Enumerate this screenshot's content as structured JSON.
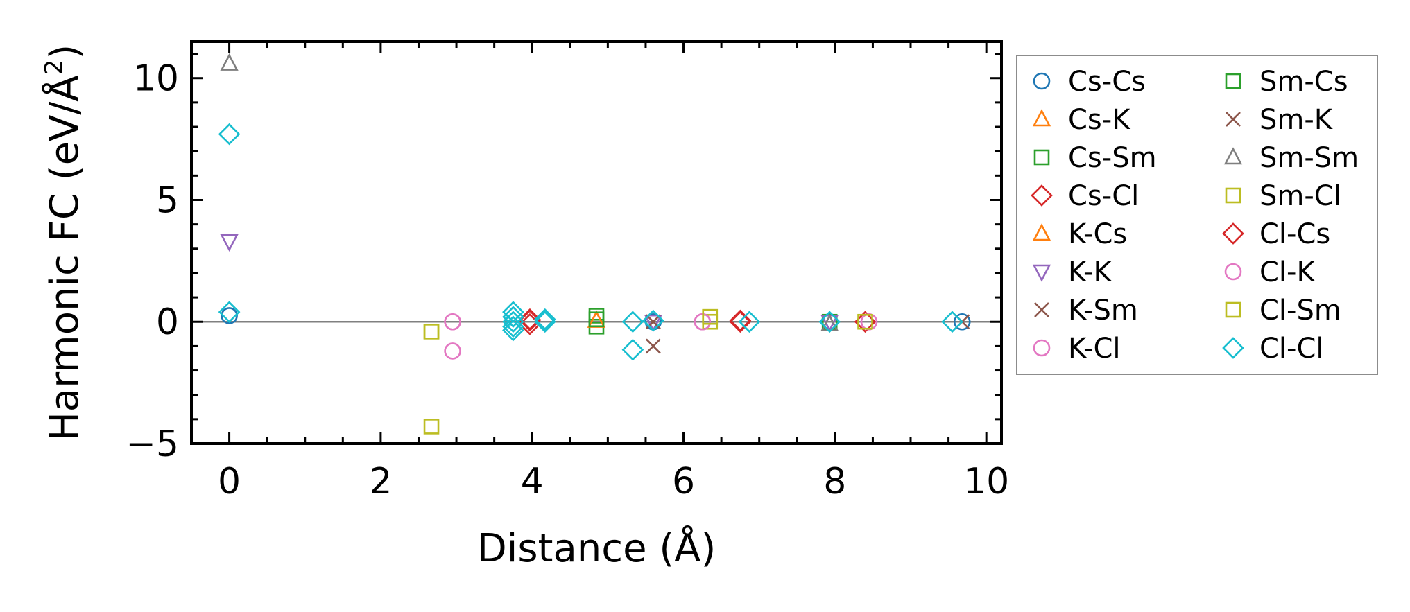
{
  "chart_data": {
    "type": "scatter",
    "title": "",
    "xlabel": "Distance (Å)",
    "ylabel": "Harmonic FC (eV/Å²)",
    "ylabel_base": "Harmonic FC (eV/Å",
    "ylabel_sup": "2",
    "ylabel_close": ")",
    "xlim": [
      -0.5,
      10.2
    ],
    "ylim": [
      -5,
      11.5
    ],
    "xticks": [
      0,
      2,
      4,
      6,
      8,
      10
    ],
    "xtick_labels": [
      "0",
      "2",
      "4",
      "6",
      "8",
      "10"
    ],
    "yticks": [
      -5,
      0,
      5,
      10
    ],
    "ytick_labels": [
      "−5",
      "0",
      "5",
      "10"
    ],
    "zero_line": true,
    "grid": false,
    "legend_position": "outside-right",
    "series": [
      {
        "name": "Cs-Cs",
        "marker": "circle",
        "color": "#1f77b4",
        "points": [
          [
            0,
            0.25
          ],
          [
            5.6,
            0.0
          ],
          [
            7.93,
            0.0
          ],
          [
            9.68,
            0.0
          ]
        ]
      },
      {
        "name": "Cs-K",
        "marker": "triangle-up",
        "color": "#ff7f0e",
        "points": [
          [
            4.85,
            0.05
          ]
        ]
      },
      {
        "name": "Cs-Sm",
        "marker": "square",
        "color": "#2ca02c",
        "points": [
          [
            4.85,
            0.25
          ],
          [
            4.85,
            -0.2
          ],
          [
            7.93,
            0.0
          ]
        ]
      },
      {
        "name": "Cs-Cl",
        "marker": "diamond",
        "color": "#d62728",
        "points": [
          [
            3.97,
            0.05
          ],
          [
            3.97,
            -0.1
          ],
          [
            6.75,
            0.05
          ],
          [
            8.4,
            0.0
          ]
        ]
      },
      {
        "name": "K-Cs",
        "marker": "triangle-up",
        "color": "#ff7f0e",
        "points": [
          [
            4.85,
            0.05
          ]
        ]
      },
      {
        "name": "K-K",
        "marker": "triangle-down",
        "color": "#9467bd",
        "points": [
          [
            0,
            3.3
          ],
          [
            5.6,
            0.0
          ],
          [
            7.93,
            0.0
          ]
        ]
      },
      {
        "name": "K-Sm",
        "marker": "x",
        "color": "#8c564b",
        "points": [
          [
            5.6,
            -1.0
          ],
          [
            5.6,
            0.0
          ],
          [
            9.68,
            0.0
          ]
        ]
      },
      {
        "name": "K-Cl",
        "marker": "circle",
        "color": "#e377c2",
        "points": [
          [
            2.95,
            0.0
          ],
          [
            2.95,
            -1.2
          ],
          [
            6.25,
            0.0
          ],
          [
            8.45,
            0.0
          ]
        ]
      },
      {
        "name": "Sm-Cs",
        "marker": "square",
        "color": "#2ca02c",
        "points": [
          [
            4.85,
            0.1
          ]
        ]
      },
      {
        "name": "Sm-K",
        "marker": "x",
        "color": "#8c564b",
        "points": [
          [
            5.6,
            0.0
          ]
        ]
      },
      {
        "name": "Sm-Sm",
        "marker": "triangle-up",
        "color": "#7f7f7f",
        "points": [
          [
            0,
            10.6
          ],
          [
            7.93,
            -0.1
          ]
        ]
      },
      {
        "name": "Sm-Cl",
        "marker": "square",
        "color": "#bcbd22",
        "points": [
          [
            2.67,
            -0.4
          ],
          [
            2.67,
            -4.3
          ],
          [
            6.35,
            0.2
          ],
          [
            6.35,
            0.0
          ],
          [
            8.4,
            0.0
          ]
        ]
      },
      {
        "name": "Cl-Cs",
        "marker": "diamond",
        "color": "#d62728",
        "points": [
          [
            3.97,
            0.1
          ],
          [
            6.75,
            0.0
          ]
        ]
      },
      {
        "name": "Cl-K",
        "marker": "circle",
        "color": "#e377c2",
        "points": [
          [
            2.95,
            0.0
          ],
          [
            6.25,
            0.0
          ]
        ]
      },
      {
        "name": "Cl-Sm",
        "marker": "square",
        "color": "#bcbd22",
        "points": [
          [
            2.67,
            -0.4
          ],
          [
            6.35,
            0.2
          ]
        ]
      },
      {
        "name": "Cl-Cl",
        "marker": "diamond",
        "color": "#17becf",
        "points": [
          [
            0,
            7.7
          ],
          [
            0,
            0.4
          ],
          [
            3.75,
            0.4
          ],
          [
            3.75,
            0.2
          ],
          [
            3.75,
            0.0
          ],
          [
            3.75,
            -0.2
          ],
          [
            3.75,
            -0.35
          ],
          [
            4.17,
            0.1
          ],
          [
            4.17,
            0.0
          ],
          [
            5.33,
            0.0
          ],
          [
            5.33,
            -1.15
          ],
          [
            5.6,
            0.05
          ],
          [
            6.87,
            0.0
          ],
          [
            7.93,
            0.0
          ],
          [
            9.55,
            0.0
          ]
        ]
      }
    ]
  }
}
